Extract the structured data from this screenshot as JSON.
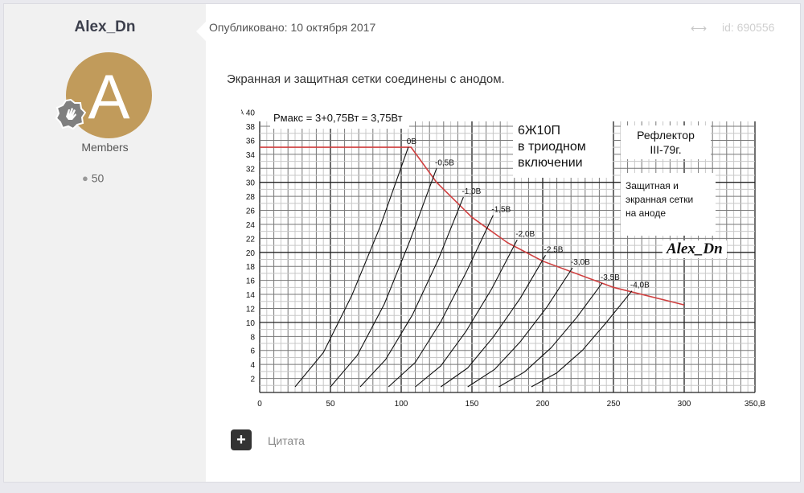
{
  "author": {
    "name": "Alex_Dn",
    "avatar_letter": "A",
    "avatar_color": "#c19b5b",
    "group": "Members",
    "post_count": "50",
    "badge_icon": "hand-wave-badge-icon",
    "posts_icon": "speech-bubble-icon"
  },
  "post": {
    "published": "Опубликовано: 10 октября 2017",
    "share_icon": "share-icon",
    "id": "id: 690556",
    "text": "Экранная и защитная сетки соединены с анодом.",
    "quote_label": "Цитата",
    "quote_icon": "plus-icon"
  },
  "chart_data": {
    "type": "line",
    "title": "6Ж10П в триодном включении",
    "annotations": {
      "pmax": "Рмакс = 3+0,75Вт = 3,75Вт",
      "tube_line1": "6Ж10П",
      "tube_line2": "в триодном",
      "tube_line3": "включении",
      "source_line1": "Рефлектор",
      "source_line2": "III-79г.",
      "grids_line1": "Защитная и",
      "grids_line2": "экранная сетки",
      "grids_line3": "на аноде",
      "signature": "Alex_Dn"
    },
    "ylabel": "мА",
    "xlabel": "В",
    "xlim": [
      0,
      350
    ],
    "ylim": [
      0,
      40
    ],
    "x_ticks": [
      "0",
      "50",
      "100",
      "150",
      "200",
      "250",
      "300",
      "350,В"
    ],
    "y_ticks": [
      "2",
      "4",
      "6",
      "8",
      "10",
      "12",
      "14",
      "16",
      "18",
      "20",
      "22",
      "24",
      "26",
      "28",
      "30",
      "32",
      "34",
      "36",
      "38",
      "40"
    ],
    "grid": true,
    "series": [
      {
        "name": "0В",
        "points": [
          [
            25,
            0.8
          ],
          [
            45,
            5.7
          ],
          [
            65,
            13.8
          ],
          [
            85,
            23.6
          ],
          [
            105,
            35
          ]
        ]
      },
      {
        "name": "-0,5В",
        "points": [
          [
            50,
            0.8
          ],
          [
            69,
            5.3
          ],
          [
            88,
            12.6
          ],
          [
            106,
            21.6
          ],
          [
            125,
            32
          ]
        ]
      },
      {
        "name": "-1,0В",
        "points": [
          [
            71,
            0.8
          ],
          [
            89,
            4.7
          ],
          [
            108,
            11.1
          ],
          [
            126,
            18.9
          ],
          [
            144,
            27.9
          ]
        ]
      },
      {
        "name": "-1,5В",
        "points": [
          [
            91,
            0.8
          ],
          [
            110,
            4.3
          ],
          [
            128,
            10.1
          ],
          [
            146,
            17.2
          ],
          [
            165,
            25.3
          ]
        ]
      },
      {
        "name": "-2,0В",
        "points": [
          [
            110,
            0.8
          ],
          [
            128,
            3.8
          ],
          [
            146,
            8.8
          ],
          [
            164,
            14.8
          ],
          [
            182,
            21.8
          ]
        ]
      },
      {
        "name": "-2,5В",
        "points": [
          [
            128,
            0.8
          ],
          [
            147,
            3.5
          ],
          [
            165,
            7.9
          ],
          [
            184,
            13.4
          ],
          [
            202,
            19.6
          ]
        ]
      },
      {
        "name": "-3,0В",
        "points": [
          [
            147,
            0.8
          ],
          [
            166,
            3.3
          ],
          [
            184,
            7.2
          ],
          [
            203,
            12.2
          ],
          [
            221,
            17.8
          ]
        ]
      },
      {
        "name": "-3,5В",
        "points": [
          [
            169,
            0.8
          ],
          [
            187,
            2.9
          ],
          [
            206,
            6.4
          ],
          [
            224,
            10.7
          ],
          [
            242,
            15.6
          ]
        ]
      },
      {
        "name": "-4,0В",
        "points": [
          [
            192,
            0.8
          ],
          [
            210,
            2.8
          ],
          [
            228,
            6.0
          ],
          [
            245,
            10.0
          ],
          [
            263,
            14.5
          ]
        ]
      }
    ],
    "limit_curve": {
      "color": "#d04040",
      "points": [
        [
          0,
          35
        ],
        [
          107,
          35
        ],
        [
          125,
          30
        ],
        [
          150,
          25
        ],
        [
          175,
          21.4
        ],
        [
          200,
          18.75
        ],
        [
          250,
          15
        ],
        [
          300,
          12.5
        ]
      ]
    }
  }
}
